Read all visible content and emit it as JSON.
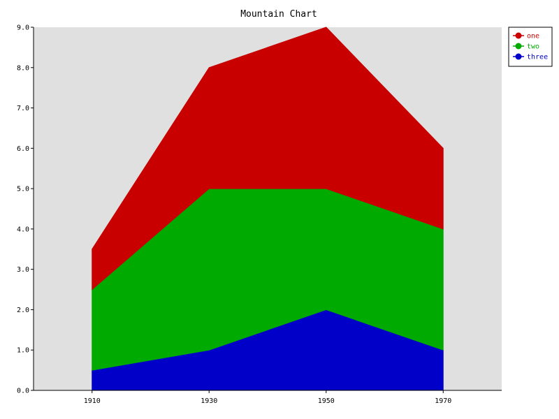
{
  "chart_data": {
    "type": "area",
    "stacked": true,
    "title": "Mountain Chart",
    "xlabel": "",
    "ylabel": "",
    "x": [
      "1910",
      "1930",
      "1950",
      "1970"
    ],
    "series": [
      {
        "name": "three",
        "values": [
          0.5,
          1.0,
          2.0,
          1.0
        ],
        "color": "#0000c8"
      },
      {
        "name": "two",
        "values": [
          2.0,
          4.0,
          3.0,
          3.0
        ],
        "color": "#00aa00"
      },
      {
        "name": "one",
        "values": [
          1.0,
          3.0,
          4.0,
          2.0
        ],
        "color": "#c80000"
      }
    ],
    "legend_order": [
      "one",
      "two",
      "three"
    ],
    "ylim": [
      0,
      9
    ],
    "yticks": [
      "0.0",
      "1.0",
      "2.0",
      "3.0",
      "4.0",
      "5.0",
      "6.0",
      "7.0",
      "8.0",
      "9.0"
    ],
    "grid": false,
    "legend_position": "top-right",
    "plot_background": "#e0e0e0"
  }
}
